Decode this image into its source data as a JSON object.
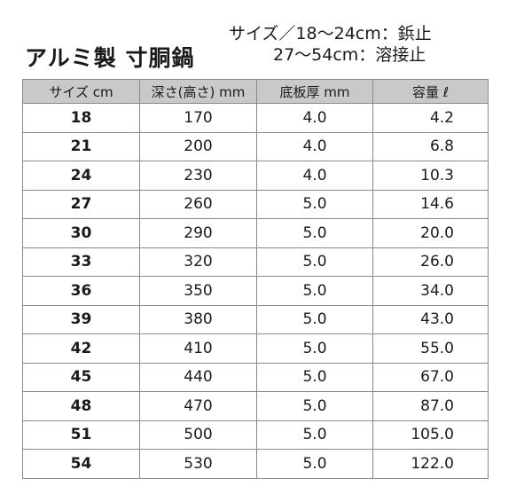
{
  "title": "アルミ製 寸胴鍋",
  "note": {
    "line1": "サイズ／18〜24cm：鋲止",
    "line2": "27〜54cm：溶接止"
  },
  "table": {
    "headers": [
      "サイズ cm",
      "深さ(高さ) mm",
      "底板厚 mm",
      "容量 ℓ"
    ],
    "rows": [
      {
        "size": "18",
        "depth": "170",
        "bottom": "4.0",
        "capacity": "4.2"
      },
      {
        "size": "21",
        "depth": "200",
        "bottom": "4.0",
        "capacity": "6.8"
      },
      {
        "size": "24",
        "depth": "230",
        "bottom": "4.0",
        "capacity": "10.3"
      },
      {
        "size": "27",
        "depth": "260",
        "bottom": "5.0",
        "capacity": "14.6"
      },
      {
        "size": "30",
        "depth": "290",
        "bottom": "5.0",
        "capacity": "20.0"
      },
      {
        "size": "33",
        "depth": "320",
        "bottom": "5.0",
        "capacity": "26.0"
      },
      {
        "size": "36",
        "depth": "350",
        "bottom": "5.0",
        "capacity": "34.0"
      },
      {
        "size": "39",
        "depth": "380",
        "bottom": "5.0",
        "capacity": "43.0"
      },
      {
        "size": "42",
        "depth": "410",
        "bottom": "5.0",
        "capacity": "55.0"
      },
      {
        "size": "45",
        "depth": "440",
        "bottom": "5.0",
        "capacity": "67.0"
      },
      {
        "size": "48",
        "depth": "470",
        "bottom": "5.0",
        "capacity": "87.0"
      },
      {
        "size": "51",
        "depth": "500",
        "bottom": "5.0",
        "capacity": "105.0"
      },
      {
        "size": "54",
        "depth": "530",
        "bottom": "5.0",
        "capacity": "122.0"
      }
    ]
  },
  "colors": {
    "header_bg": "#c9c9c9",
    "border": "#8a8a8a"
  }
}
